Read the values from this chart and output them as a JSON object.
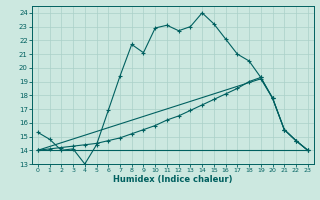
{
  "xlabel": "Humidex (Indice chaleur)",
  "bg_color": "#cce8e0",
  "line_color": "#006060",
  "grid_color": "#aad0c8",
  "xlim": [
    -0.5,
    23.5
  ],
  "ylim": [
    13,
    24.5
  ],
  "xticks": [
    0,
    1,
    2,
    3,
    4,
    5,
    6,
    7,
    8,
    9,
    10,
    11,
    12,
    13,
    14,
    15,
    16,
    17,
    18,
    19,
    20,
    21,
    22,
    23
  ],
  "yticks": [
    13,
    14,
    15,
    16,
    17,
    18,
    19,
    20,
    21,
    22,
    23,
    24
  ],
  "curve1_x": [
    0,
    1,
    2,
    3,
    4,
    5,
    6,
    7,
    8,
    9,
    10,
    11,
    12,
    13,
    14,
    15,
    16,
    17,
    18,
    19,
    20,
    21,
    22,
    23
  ],
  "curve1_y": [
    15.3,
    14.8,
    14.0,
    14.1,
    13.0,
    14.4,
    16.9,
    19.4,
    21.7,
    21.1,
    22.9,
    23.1,
    22.7,
    23.0,
    24.0,
    23.2,
    22.1,
    21.0,
    20.5,
    19.3,
    17.8,
    15.5,
    14.7,
    14.0
  ],
  "curve2_x": [
    0,
    14,
    23
  ],
  "curve2_y": [
    14.0,
    14.0,
    14.0
  ],
  "curve3_x": [
    0,
    1,
    2,
    3,
    4,
    5,
    6,
    7,
    8,
    9,
    10,
    11,
    12,
    13,
    14,
    15,
    16,
    17,
    18,
    19,
    20,
    21,
    22,
    23
  ],
  "curve3_y": [
    14.0,
    14.1,
    14.2,
    14.3,
    14.4,
    14.5,
    14.7,
    14.9,
    15.2,
    15.5,
    15.8,
    16.2,
    16.5,
    16.9,
    17.3,
    17.7,
    18.1,
    18.5,
    19.0,
    19.3,
    17.8,
    15.5,
    14.7,
    14.0
  ],
  "curve4_x": [
    0,
    19,
    20,
    21,
    22,
    23
  ],
  "curve4_y": [
    14.0,
    19.2,
    17.8,
    15.5,
    14.7,
    14.0
  ]
}
